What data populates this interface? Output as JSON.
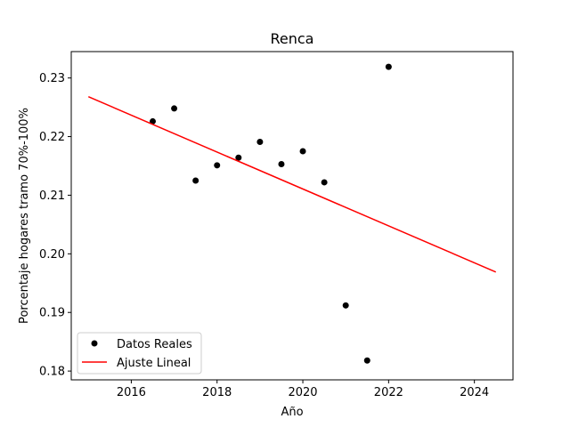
{
  "chart_data": {
    "type": "scatter",
    "title": "Renca",
    "xlabel": "Año",
    "ylabel": "Porcentaje hogares tramo 70%-100%",
    "xlim": [
      2014.6,
      2024.9
    ],
    "ylim": [
      0.1785,
      0.2345
    ],
    "xticks": [
      2016,
      2018,
      2020,
      2022,
      2024
    ],
    "yticks": [
      0.18,
      0.19,
      0.2,
      0.21,
      0.22,
      0.23
    ],
    "xtick_labels": [
      "2016",
      "2018",
      "2020",
      "2022",
      "2024"
    ],
    "ytick_labels": [
      "0.18",
      "0.19",
      "0.20",
      "0.21",
      "0.22",
      "0.23"
    ],
    "grid": false,
    "legend_position": "lower-left",
    "series": [
      {
        "name": "Datos Reales",
        "kind": "scatter",
        "color": "#000000",
        "x": [
          2016.5,
          2017.0,
          2017.5,
          2018.0,
          2018.5,
          2019.0,
          2019.5,
          2020.0,
          2020.5,
          2021.0,
          2021.5,
          2022.0
        ],
        "y": [
          0.2226,
          0.2248,
          0.2125,
          0.2151,
          0.2164,
          0.2191,
          0.2153,
          0.2175,
          0.2122,
          0.1912,
          0.1818,
          0.2319
        ]
      },
      {
        "name": "Ajuste Lineal",
        "kind": "line",
        "color": "#ff0000",
        "x": [
          2015.0,
          2024.5
        ],
        "y": [
          0.2268,
          0.1969
        ]
      }
    ]
  }
}
